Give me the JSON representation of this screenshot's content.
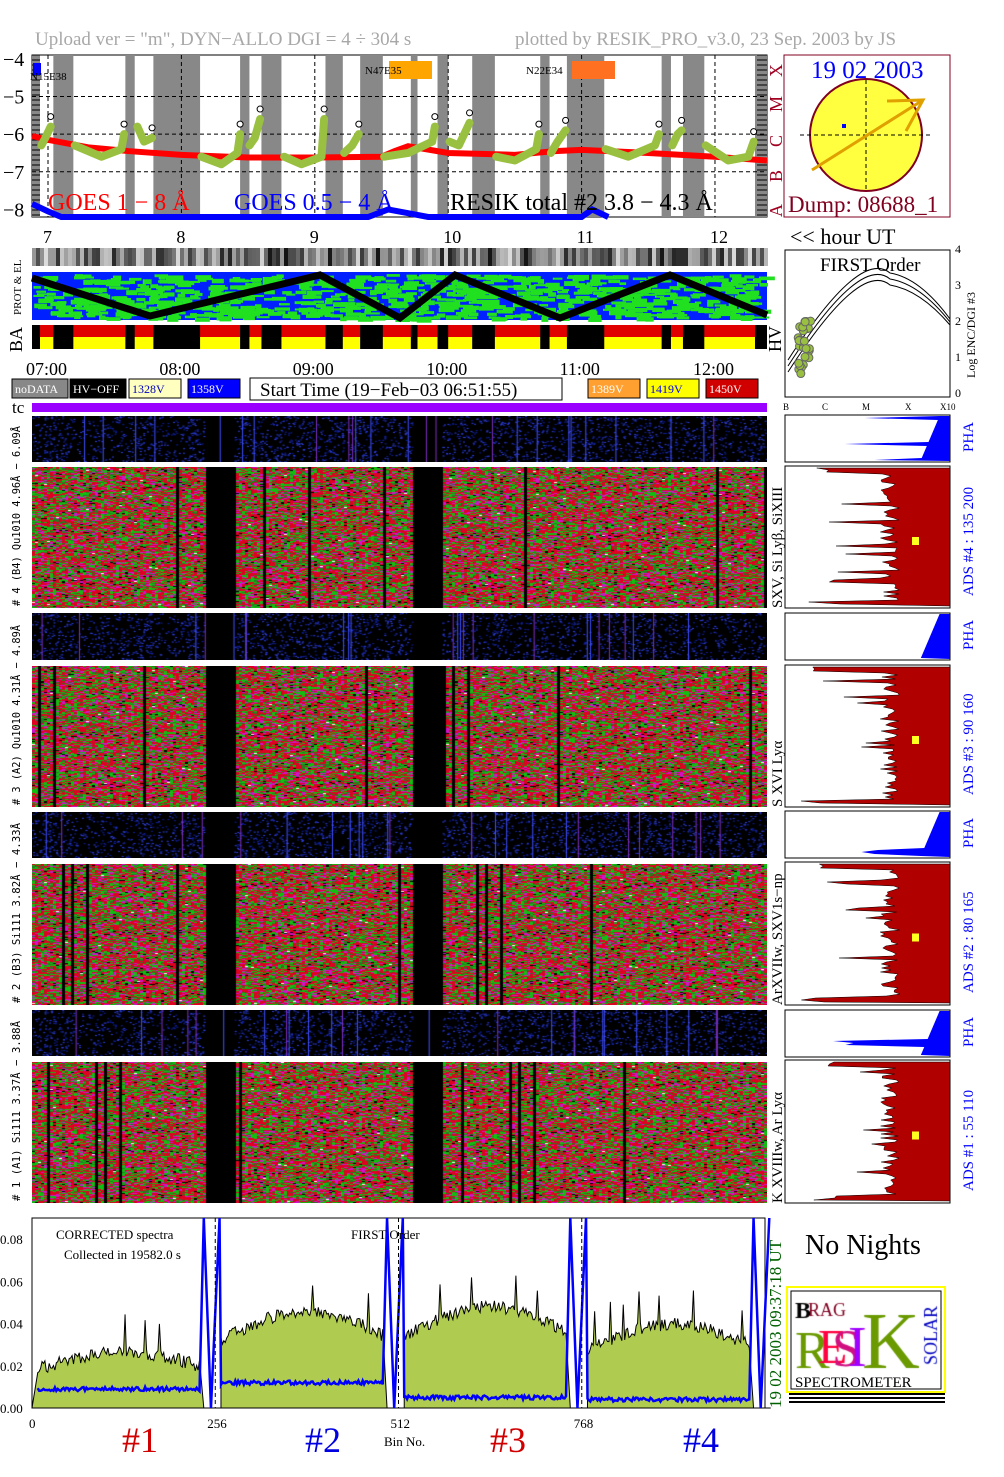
{
  "header": {
    "left": "Upload ver = \"m\", DYN−ALLO DGI =   4 ÷ 304 s",
    "right": "plotted by RESIK_PRO_v3.0, 23 Sep. 2003 by JS"
  },
  "goes_panel": {
    "y_ticks": [
      "−4",
      "−5",
      "−6",
      "−7",
      "−8"
    ],
    "x_ticks": [
      "7",
      "8",
      "9",
      "10",
      "11",
      "12"
    ],
    "labels": {
      "goes_long": "GOES 1 − 8 Å",
      "goes_short": "GOES 0.5 − 4 Å",
      "resik": "RESIK total #2  3.8 − 4.3 Å"
    },
    "active_regions": [
      {
        "name": "N15E38",
        "color": "#0000ff"
      },
      {
        "name": "N47E35",
        "color": "#ffa500"
      },
      {
        "name": "N22E34",
        "color": "#ff7020"
      }
    ],
    "class_letters": [
      "A",
      "B",
      "C",
      "M",
      "X"
    ],
    "hour_label": "<< hour UT"
  },
  "sun_panel": {
    "date": "19 02 2003",
    "dump": "Dump: 08688_1"
  },
  "side_labels": {
    "prot_el": "PROT & EL",
    "ba": "BA",
    "hv": "HV",
    "tc": "tc"
  },
  "time_labels": [
    "07:00",
    "08:00",
    "09:00",
    "10:00",
    "11:00",
    "12:00"
  ],
  "legend": {
    "items": [
      {
        "label": "noDATA",
        "bg": "#888888",
        "fg": "#ffffff"
      },
      {
        "label": "HV−OFF",
        "bg": "#000000",
        "fg": "#ffffff"
      },
      {
        "label": "1328V",
        "bg": "#ffffc0",
        "fg": "#0000c0"
      },
      {
        "label": "1358V",
        "bg": "#0000ff",
        "fg": "#ffffff"
      },
      {
        "label": "1389V",
        "bg": "#ffa030",
        "fg": "#ffffff"
      },
      {
        "label": "1419V",
        "bg": "#ffff00",
        "fg": "#0000ff"
      },
      {
        "label": "1450V",
        "bg": "#d00000",
        "fg": "#ffffff"
      }
    ],
    "start_time": "Start Time (19−Feb−03 06:51:55)"
  },
  "first_order_plot": {
    "title": "FIRST Order",
    "y_label": "Log ENC/DGI #3",
    "y_ticks": [
      "0",
      "1",
      "2",
      "3",
      "4"
    ],
    "x_ticks": [
      "B",
      "C",
      "M",
      "X",
      "X10"
    ]
  },
  "channels": [
    {
      "left_label": "# 4 (B4) Qu1010 4.96Å − 6.09Å",
      "lines": "SXV, Si Lyβ, SiXIII",
      "ads": "ADS #4 :  135 200",
      "pha": "PHA"
    },
    {
      "left_label": "# 3 (A2) Qu1010 4.31Å − 4.89Å",
      "lines": "S XVI Lyα",
      "ads": "ADS #3 :  90 160",
      "pha": "PHA"
    },
    {
      "left_label": "# 2 (B3) Si111 3.82Å − 4.33Å",
      "lines": "ArXVIIw, SXV1s−np",
      "ads": "ADS #2 :  80 165",
      "pha": "PHA"
    },
    {
      "left_label": "# 1 (A1) Si111 3.37Å − 3.88Å",
      "lines": "K XVIIIw, Ar Lyα",
      "ads": "ADS #1 :  55 110",
      "pha": "PHA"
    }
  ],
  "bottom_panel": {
    "text1": "CORRECTED spectra",
    "text2": "Collected in 19582.0 s",
    "text3": "FIRST Order",
    "y_ticks": [
      "0.08",
      "0.06",
      "0.04",
      "0.02",
      "0.00"
    ],
    "x_ticks": [
      "0",
      "256",
      "512",
      "768"
    ],
    "x_label": "Bin No.",
    "channel_marks": [
      {
        "label": "#1",
        "color": "#d00000"
      },
      {
        "label": "#2",
        "color": "#0000e0"
      },
      {
        "label": "#3",
        "color": "#d00000"
      },
      {
        "label": "#4",
        "color": "#0000e0"
      }
    ],
    "timestamp": "19 02 2003  09:37:18 UT"
  },
  "no_nights": "No Nights",
  "logo": {
    "text": "BRAGG RESIK SOLAR SPECTROMETER",
    "caption": "SPECTROMETER"
  },
  "chart_data": [
    {
      "type": "line",
      "title": "",
      "xlabel": "hour UT",
      "ylabel": "",
      "xlim": [
        6.88,
        12.39
      ],
      "ylim": [
        -8.2,
        -3.9
      ],
      "grid": true,
      "shaded_intervals": [
        [
          6.88,
          6.94
        ],
        [
          7.04,
          7.19
        ],
        [
          7.58,
          7.65
        ],
        [
          7.79,
          8.14
        ],
        [
          8.44,
          8.51
        ],
        [
          8.6,
          8.75
        ],
        [
          9.08,
          9.21
        ],
        [
          9.34,
          9.51
        ],
        [
          9.72,
          9.77
        ],
        [
          9.92,
          10.0
        ],
        [
          10.18,
          10.35
        ],
        [
          10.69,
          10.76
        ],
        [
          10.89,
          11.17
        ],
        [
          11.6,
          11.67
        ],
        [
          11.76,
          11.92
        ],
        [
          12.3,
          12.39
        ]
      ],
      "series": [
        {
          "name": "GOES 1 − 8 Å",
          "color": "#ff0000",
          "x": [
            6.88,
            7.0,
            7.3,
            7.6,
            8.0,
            8.5,
            9.0,
            9.5,
            9.6,
            9.7,
            10.0,
            10.5,
            10.8,
            11.0,
            11.5,
            12.0,
            12.39
          ],
          "y": [
            -6.05,
            -6.15,
            -6.35,
            -6.45,
            -6.55,
            -6.62,
            -6.62,
            -6.6,
            -6.45,
            -6.32,
            -6.5,
            -6.55,
            -6.45,
            -6.42,
            -6.5,
            -6.6,
            -6.7
          ]
        },
        {
          "name": "GOES 0.5 − 4 Å",
          "color": "#0000ff",
          "x": [
            6.88,
            7.0,
            7.1,
            9.4,
            9.55,
            9.7,
            9.85,
            11.0,
            11.08,
            11.2
          ],
          "y": [
            -7.85,
            -8.05,
            -8.2,
            -8.2,
            -8.0,
            -8.1,
            -8.2,
            -8.2,
            -8.0,
            -8.2
          ]
        },
        {
          "name": "RESIK total #2  3.8 − 4.3 Å",
          "color": "#99c040",
          "segments": [
            {
              "x": [
                6.95,
                6.98,
                7.02
              ],
              "y": [
                -6.3,
                -6.1,
                -5.8
              ]
            },
            {
              "x": [
                7.2,
                7.4,
                7.55,
                7.57
              ],
              "y": [
                -6.3,
                -6.6,
                -6.4,
                -6.0
              ]
            },
            {
              "x": [
                7.67,
                7.72,
                7.78
              ],
              "y": [
                -5.8,
                -6.2,
                -6.1
              ]
            },
            {
              "x": [
                8.15,
                8.3,
                8.42,
                8.44
              ],
              "y": [
                -6.6,
                -6.8,
                -6.5,
                -6.0
              ]
            },
            {
              "x": [
                8.51,
                8.55,
                8.59
              ],
              "y": [
                -6.3,
                -6.1,
                -5.6
              ]
            },
            {
              "x": [
                8.77,
                8.9,
                9.05,
                9.07
              ],
              "y": [
                -6.6,
                -6.8,
                -6.6,
                -5.6
              ]
            },
            {
              "x": [
                9.22,
                9.28,
                9.33
              ],
              "y": [
                -6.5,
                -6.3,
                -6.0
              ]
            },
            {
              "x": [
                9.52,
                9.7,
                9.88,
                9.9
              ],
              "y": [
                -6.6,
                -6.5,
                -6.2,
                -5.8
              ]
            },
            {
              "x": [
                10.01,
                10.08,
                10.16
              ],
              "y": [
                -6.2,
                -6.3,
                -5.7
              ]
            },
            {
              "x": [
                10.36,
                10.5,
                10.66,
                10.68
              ],
              "y": [
                -6.6,
                -6.7,
                -6.4,
                -6.0
              ]
            },
            {
              "x": [
                10.77,
                10.82,
                10.88
              ],
              "y": [
                -6.5,
                -6.2,
                -5.9
              ]
            },
            {
              "x": [
                11.18,
                11.35,
                11.55,
                11.58
              ],
              "y": [
                -6.4,
                -6.6,
                -6.3,
                -6.0
              ]
            },
            {
              "x": [
                11.68,
                11.72,
                11.75
              ],
              "y": [
                -6.3,
                -6.0,
                -5.9
              ]
            },
            {
              "x": [
                11.93,
                12.1,
                12.25,
                12.29
              ],
              "y": [
                -6.3,
                -6.7,
                -6.6,
                -6.2
              ]
            }
          ]
        }
      ]
    },
    {
      "type": "area",
      "title": "",
      "xlabel": "Bin No.",
      "xlim": [
        0,
        1024
      ],
      "ylim": [
        0,
        0.09
      ],
      "grid": false,
      "series": [
        {
          "name": "",
          "color": "#b0cc50",
          "channel_levels": [
            0.022,
            0.038,
            0.04,
            0.033
          ]
        },
        {
          "name": "",
          "color": "#0000ff",
          "channel_levels": [
            0.009,
            0.012,
            0.005,
            0.004
          ]
        }
      ]
    }
  ]
}
